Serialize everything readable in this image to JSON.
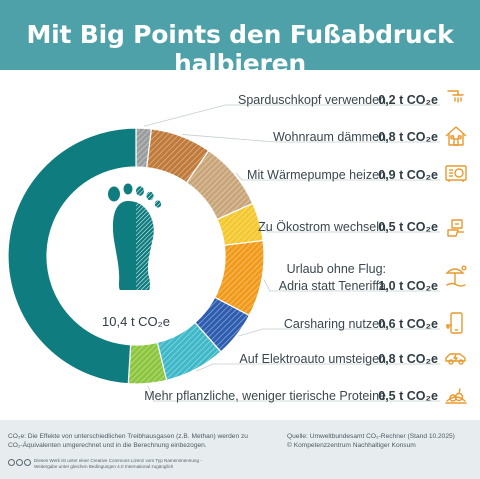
{
  "title": "Mit Big Points den Fußabdruck halbieren",
  "chart_data": {
    "type": "pie",
    "total_label": "10,4 t CO₂e",
    "total": 10.4,
    "unit": "t CO₂e",
    "slices": [
      {
        "label": [
          "Sparduschkopf verwenden"
        ],
        "display": "0,2 t CO₂e",
        "value": 0.2,
        "color": "#9a9d9e",
        "hatched": true,
        "icon": "shower-icon"
      },
      {
        "label": [
          "Wohnraum dämmen"
        ],
        "display": "0,8 t CO₂e",
        "value": 0.8,
        "color": "#c07a3a",
        "hatched": true,
        "icon": "house-icon"
      },
      {
        "label": [
          "Mit Wärmepumpe heizen"
        ],
        "display": "0,9 t CO₂e",
        "value": 0.9,
        "color": "#c9a57a",
        "hatched": true,
        "icon": "heat-pump-icon"
      },
      {
        "label": [
          "Zu Ökostrom wechseln"
        ],
        "display": "0,5 t CO₂e",
        "value": 0.5,
        "color": "#f4c82e",
        "hatched": true,
        "icon": "green-power-icon"
      },
      {
        "label": [
          "Urlaub ohne Flug:",
          "Adria statt Teneriffa"
        ],
        "display": "1,0 t CO₂e",
        "value": 1.0,
        "color": "#f29a1a",
        "hatched": true,
        "icon": "beach-umbrella-icon"
      },
      {
        "label": [
          "Carsharing nutzen"
        ],
        "display": "0,6 t CO₂e",
        "value": 0.6,
        "color": "#2e5db0",
        "hatched": true,
        "icon": "smartphone-icon"
      },
      {
        "label": [
          "Auf Elektroauto umsteigen"
        ],
        "display": "0,8 t CO₂e",
        "value": 0.8,
        "color": "#3fb8c8",
        "hatched": true,
        "icon": "electric-car-icon"
      },
      {
        "label": [
          "Mehr pflanzliche, weniger tierische Proteine"
        ],
        "display": "0,5 t CO₂e",
        "value": 0.5,
        "color": "#8cc63e",
        "hatched": true,
        "icon": "vegetables-icon"
      }
    ],
    "remainder": {
      "value": 5.1,
      "color": "#0f7d80"
    }
  },
  "footer": {
    "note_left": "CO₂e: Die Effekte von unterschiedlichen Treibhausgasen (z.B. Methan) werden zu CO₂-Äquivalenten umgerechnet und in die Berechnung einbezogen.",
    "source": "Quelle: Umweltbundesamt CO₂-Rechner (Stand 10.2025)",
    "copyright": "© Kompetenzzentrum Nachhaltiger Konsum",
    "license": "Dieses Werk ist unter einer Creative Commons Lizenz vom Typ Namensnennung - Weitergabe unter gleichen Bedingungen 4.0 International zugänglich"
  },
  "colors": {
    "header": "#4fa1a9",
    "footer": "#e7ecef",
    "icon": "#e89a2e"
  }
}
